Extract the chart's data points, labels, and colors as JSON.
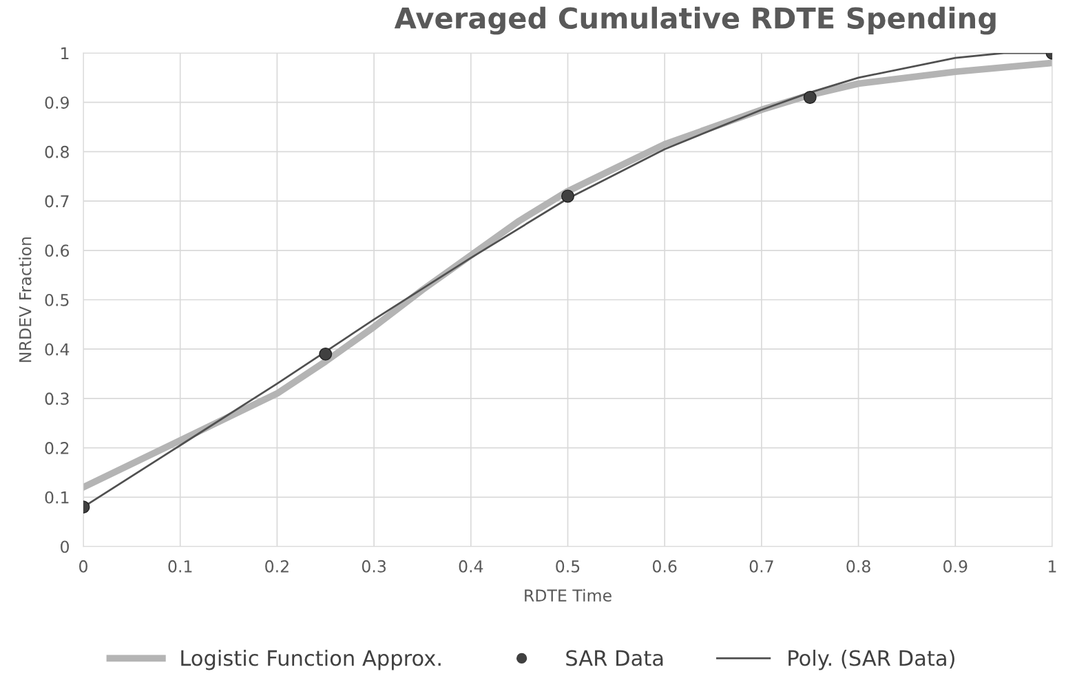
{
  "chart_data": {
    "type": "line",
    "title": "Averaged Cumulative RDTE Spending",
    "xlabel": "RDTE Time",
    "ylabel": "NRDEV Fraction",
    "series": [
      {
        "name": "Logistic Function Approx.",
        "color": "#b4b4b4",
        "x": [
          0,
          0.1,
          0.2,
          0.25,
          0.3,
          0.35,
          0.4,
          0.45,
          0.5,
          0.6,
          0.7,
          0.75,
          0.8,
          0.9,
          1
        ],
        "values": [
          0.12,
          0.215,
          0.31,
          0.375,
          0.445,
          0.52,
          0.59,
          0.66,
          0.72,
          0.815,
          0.885,
          0.915,
          0.938,
          0.962,
          0.98
        ]
      },
      {
        "name": "SAR Data",
        "type": "scatter",
        "marker": "circle",
        "color": "#404040",
        "x": [
          0,
          0.25,
          0.5,
          0.75,
          1
        ],
        "values": [
          0.08,
          0.39,
          0.71,
          0.91,
          1
        ]
      },
      {
        "name": "Poly. (SAR Data)",
        "color": "#505050",
        "x": [
          0,
          0.1,
          0.2,
          0.25,
          0.3,
          0.4,
          0.5,
          0.6,
          0.7,
          0.75,
          0.8,
          0.9,
          0.95,
          1
        ],
        "values": [
          0.08,
          0.205,
          0.33,
          0.395,
          0.46,
          0.585,
          0.705,
          0.805,
          0.885,
          0.92,
          0.95,
          0.99,
          1.0,
          1.0
        ]
      }
    ],
    "xlim": [
      0,
      1
    ],
    "ylim": [
      0,
      1
    ],
    "xticks": [
      0,
      0.1,
      0.2,
      0.3,
      0.4,
      0.5,
      0.6,
      0.7,
      0.8,
      0.9,
      1
    ],
    "yticks": [
      0,
      0.1,
      0.2,
      0.3,
      0.4,
      0.5,
      0.6,
      0.7,
      0.8,
      0.9,
      1
    ],
    "grid": true,
    "legend": "bottom"
  }
}
